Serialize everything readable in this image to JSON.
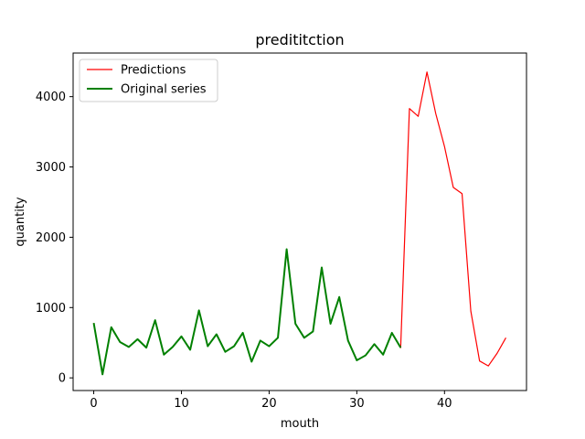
{
  "chart_data": {
    "type": "line",
    "title": "predititction",
    "xlabel": "mouth",
    "ylabel": "quantity",
    "xlim": [
      -2.35,
      49.35
    ],
    "ylim": [
      -180,
      4620
    ],
    "xticks": [
      0,
      10,
      20,
      30,
      40
    ],
    "yticks": [
      0,
      1000,
      2000,
      3000,
      4000
    ],
    "grid": false,
    "legend_position": "top-left",
    "series": [
      {
        "name": "Predictions",
        "color": "#ff0000",
        "x": [
          0,
          1,
          2,
          3,
          4,
          5,
          6,
          7,
          8,
          9,
          10,
          11,
          12,
          13,
          14,
          15,
          16,
          17,
          18,
          19,
          20,
          21,
          22,
          23,
          24,
          25,
          26,
          27,
          28,
          29,
          30,
          31,
          32,
          33,
          34,
          35,
          36,
          37,
          38,
          39,
          40,
          41,
          42,
          43,
          44,
          45,
          46,
          47
        ],
        "values": [
          780,
          50,
          720,
          510,
          440,
          550,
          430,
          820,
          330,
          440,
          590,
          400,
          960,
          450,
          620,
          370,
          450,
          640,
          230,
          530,
          450,
          570,
          1830,
          770,
          570,
          660,
          1570,
          770,
          1150,
          530,
          250,
          320,
          480,
          330,
          640,
          430,
          3830,
          3720,
          4350,
          3760,
          3290,
          2710,
          2620,
          950,
          240,
          170,
          350,
          570
        ]
      },
      {
        "name": "Original series",
        "color": "#008000",
        "x": [
          0,
          1,
          2,
          3,
          4,
          5,
          6,
          7,
          8,
          9,
          10,
          11,
          12,
          13,
          14,
          15,
          16,
          17,
          18,
          19,
          20,
          21,
          22,
          23,
          24,
          25,
          26,
          27,
          28,
          29,
          30,
          31,
          32,
          33,
          34,
          35
        ],
        "values": [
          780,
          50,
          720,
          510,
          440,
          550,
          430,
          820,
          330,
          440,
          590,
          400,
          960,
          450,
          620,
          370,
          450,
          640,
          230,
          530,
          450,
          570,
          1830,
          770,
          570,
          660,
          1570,
          770,
          1150,
          530,
          250,
          320,
          480,
          330,
          640,
          430
        ]
      }
    ]
  }
}
